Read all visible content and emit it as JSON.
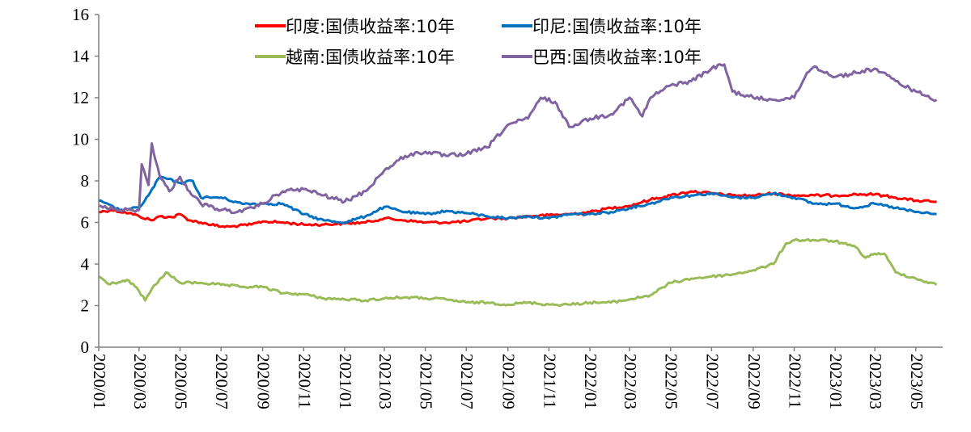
{
  "chart_data": {
    "type": "line",
    "title": "",
    "xlabel": "",
    "ylabel": "",
    "ylim": [
      0,
      16
    ],
    "yticks": [
      0,
      2,
      4,
      6,
      8,
      10,
      12,
      14,
      16
    ],
    "xlim": [
      "2020-01-01",
      "2023-06-10"
    ],
    "x_tick_labels": [
      "2020/01",
      "2020/03",
      "2020/05",
      "2020/07",
      "2020/09",
      "2020/11",
      "2021/01",
      "2021/03",
      "2021/05",
      "2021/07",
      "2021/09",
      "2021/11",
      "2022/01",
      "2022/03",
      "2022/05",
      "2022/07",
      "2022/09",
      "2022/11",
      "2023/01",
      "2023/03",
      "2023/05"
    ],
    "grid": false,
    "legend_position": "top-center",
    "series": [
      {
        "name": "印度:国债收益率:10年",
        "color": "#ff0000",
        "points": [
          [
            "2020-01-01",
            6.5
          ],
          [
            "2020-01-20",
            6.6
          ],
          [
            "2020-02-15",
            6.45
          ],
          [
            "2020-03-01",
            6.3
          ],
          [
            "2020-03-20",
            6.1
          ],
          [
            "2020-04-01",
            6.3
          ],
          [
            "2020-04-20",
            6.25
          ],
          [
            "2020-05-01",
            6.4
          ],
          [
            "2020-05-15",
            6.1
          ],
          [
            "2020-06-01",
            6.0
          ],
          [
            "2020-07-01",
            5.8
          ],
          [
            "2020-07-15",
            5.8
          ],
          [
            "2020-08-15",
            5.9
          ],
          [
            "2020-09-01",
            6.05
          ],
          [
            "2020-10-01",
            6.0
          ],
          [
            "2020-11-01",
            5.9
          ],
          [
            "2020-12-01",
            5.9
          ],
          [
            "2021-01-01",
            5.95
          ],
          [
            "2021-02-01",
            6.0
          ],
          [
            "2021-03-01",
            6.2
          ],
          [
            "2021-04-01",
            6.1
          ],
          [
            "2021-05-01",
            6.0
          ],
          [
            "2021-06-01",
            6.0
          ],
          [
            "2021-07-01",
            6.05
          ],
          [
            "2021-08-01",
            6.2
          ],
          [
            "2021-09-01",
            6.2
          ],
          [
            "2021-10-01",
            6.3
          ],
          [
            "2021-11-01",
            6.35
          ],
          [
            "2021-12-01",
            6.4
          ],
          [
            "2022-01-01",
            6.5
          ],
          [
            "2022-02-01",
            6.7
          ],
          [
            "2022-03-01",
            6.8
          ],
          [
            "2022-04-01",
            7.1
          ],
          [
            "2022-05-01",
            7.3
          ],
          [
            "2022-06-01",
            7.5
          ],
          [
            "2022-07-01",
            7.4
          ],
          [
            "2022-08-01",
            7.3
          ],
          [
            "2022-09-01",
            7.3
          ],
          [
            "2022-10-01",
            7.4
          ],
          [
            "2022-11-01",
            7.3
          ],
          [
            "2022-12-01",
            7.3
          ],
          [
            "2023-01-01",
            7.3
          ],
          [
            "2023-02-01",
            7.35
          ],
          [
            "2023-03-01",
            7.35
          ],
          [
            "2023-04-01",
            7.2
          ],
          [
            "2023-05-01",
            7.05
          ],
          [
            "2023-06-01",
            7.0
          ]
        ]
      },
      {
        "name": "印尼:国债收益率:10年",
        "color": "#0070c0",
        "points": [
          [
            "2020-01-01",
            7.05
          ],
          [
            "2020-02-01",
            6.6
          ],
          [
            "2020-03-01",
            6.7
          ],
          [
            "2020-03-15",
            7.3
          ],
          [
            "2020-04-01",
            8.2
          ],
          [
            "2020-05-01",
            7.9
          ],
          [
            "2020-05-20",
            8.0
          ],
          [
            "2020-06-01",
            7.2
          ],
          [
            "2020-07-01",
            7.2
          ],
          [
            "2020-08-01",
            6.9
          ],
          [
            "2020-09-01",
            6.9
          ],
          [
            "2020-10-01",
            6.9
          ],
          [
            "2020-11-01",
            6.4
          ],
          [
            "2020-12-01",
            6.1
          ],
          [
            "2021-01-01",
            6.0
          ],
          [
            "2021-02-01",
            6.3
          ],
          [
            "2021-03-01",
            6.75
          ],
          [
            "2021-04-01",
            6.5
          ],
          [
            "2021-05-01",
            6.4
          ],
          [
            "2021-06-01",
            6.55
          ],
          [
            "2021-07-01",
            6.45
          ],
          [
            "2021-08-01",
            6.3
          ],
          [
            "2021-09-01",
            6.2
          ],
          [
            "2021-10-01",
            6.3
          ],
          [
            "2021-11-01",
            6.2
          ],
          [
            "2021-12-01",
            6.4
          ],
          [
            "2022-01-01",
            6.4
          ],
          [
            "2022-02-01",
            6.5
          ],
          [
            "2022-03-01",
            6.7
          ],
          [
            "2022-04-01",
            6.9
          ],
          [
            "2022-05-01",
            7.2
          ],
          [
            "2022-06-01",
            7.3
          ],
          [
            "2022-07-01",
            7.4
          ],
          [
            "2022-08-01",
            7.2
          ],
          [
            "2022-09-01",
            7.2
          ],
          [
            "2022-10-01",
            7.4
          ],
          [
            "2022-11-01",
            7.2
          ],
          [
            "2022-12-01",
            6.9
          ],
          [
            "2023-01-01",
            6.9
          ],
          [
            "2023-02-01",
            6.7
          ],
          [
            "2023-03-01",
            6.9
          ],
          [
            "2023-04-01",
            6.7
          ],
          [
            "2023-05-01",
            6.5
          ],
          [
            "2023-06-01",
            6.4
          ]
        ]
      },
      {
        "name": "越南:国债收益率:10年",
        "color": "#9bbb59",
        "points": [
          [
            "2020-01-01",
            3.4
          ],
          [
            "2020-01-15",
            3.05
          ],
          [
            "2020-02-15",
            3.2
          ],
          [
            "2020-03-01",
            2.7
          ],
          [
            "2020-03-10",
            2.25
          ],
          [
            "2020-03-20",
            2.8
          ],
          [
            "2020-04-10",
            3.6
          ],
          [
            "2020-05-01",
            3.1
          ],
          [
            "2020-06-01",
            3.1
          ],
          [
            "2020-07-01",
            3.0
          ],
          [
            "2020-08-01",
            2.9
          ],
          [
            "2020-09-01",
            2.9
          ],
          [
            "2020-10-01",
            2.6
          ],
          [
            "2020-11-01",
            2.55
          ],
          [
            "2020-12-01",
            2.35
          ],
          [
            "2021-01-01",
            2.3
          ],
          [
            "2021-02-01",
            2.25
          ],
          [
            "2021-03-01",
            2.35
          ],
          [
            "2021-04-01",
            2.4
          ],
          [
            "2021-05-01",
            2.35
          ],
          [
            "2021-06-01",
            2.3
          ],
          [
            "2021-07-01",
            2.15
          ],
          [
            "2021-08-01",
            2.15
          ],
          [
            "2021-09-01",
            2.05
          ],
          [
            "2021-10-01",
            2.15
          ],
          [
            "2021-11-01",
            2.05
          ],
          [
            "2021-12-01",
            2.05
          ],
          [
            "2022-01-01",
            2.15
          ],
          [
            "2022-02-01",
            2.15
          ],
          [
            "2022-03-01",
            2.3
          ],
          [
            "2022-04-01",
            2.5
          ],
          [
            "2022-05-01",
            3.1
          ],
          [
            "2022-06-01",
            3.3
          ],
          [
            "2022-07-01",
            3.4
          ],
          [
            "2022-08-01",
            3.5
          ],
          [
            "2022-09-01",
            3.7
          ],
          [
            "2022-10-01",
            4.0
          ],
          [
            "2022-10-20",
            5.0
          ],
          [
            "2022-11-01",
            5.15
          ],
          [
            "2022-12-01",
            5.15
          ],
          [
            "2023-01-01",
            5.1
          ],
          [
            "2023-02-01",
            4.8
          ],
          [
            "2023-02-15",
            4.3
          ],
          [
            "2023-03-01",
            4.5
          ],
          [
            "2023-03-15",
            4.5
          ],
          [
            "2023-04-01",
            3.6
          ],
          [
            "2023-05-01",
            3.3
          ],
          [
            "2023-06-01",
            3.0
          ]
        ]
      },
      {
        "name": "巴西:国债收益率:10年",
        "color": "#8064a2",
        "points": [
          [
            "2020-01-01",
            6.8
          ],
          [
            "2020-02-01",
            6.6
          ],
          [
            "2020-03-01",
            6.6
          ],
          [
            "2020-03-05",
            8.8
          ],
          [
            "2020-03-15",
            7.8
          ],
          [
            "2020-03-20",
            9.8
          ],
          [
            "2020-04-01",
            8.2
          ],
          [
            "2020-04-15",
            7.5
          ],
          [
            "2020-05-01",
            8.2
          ],
          [
            "2020-05-15",
            7.5
          ],
          [
            "2020-06-01",
            6.9
          ],
          [
            "2020-07-01",
            6.6
          ],
          [
            "2020-08-01",
            6.5
          ],
          [
            "2020-09-01",
            6.9
          ],
          [
            "2020-10-01",
            7.5
          ],
          [
            "2020-11-01",
            7.6
          ],
          [
            "2020-12-01",
            7.3
          ],
          [
            "2021-01-01",
            7.0
          ],
          [
            "2021-02-01",
            7.5
          ],
          [
            "2021-03-01",
            8.5
          ],
          [
            "2021-04-01",
            9.2
          ],
          [
            "2021-05-01",
            9.4
          ],
          [
            "2021-06-01",
            9.2
          ],
          [
            "2021-07-01",
            9.3
          ],
          [
            "2021-08-01",
            9.6
          ],
          [
            "2021-09-01",
            10.7
          ],
          [
            "2021-10-01",
            11.0
          ],
          [
            "2021-10-20",
            12.0
          ],
          [
            "2021-11-10",
            11.8
          ],
          [
            "2021-12-01",
            10.6
          ],
          [
            "2022-01-01",
            11.0
          ],
          [
            "2022-02-01",
            11.2
          ],
          [
            "2022-03-01",
            12.0
          ],
          [
            "2022-03-20",
            11.1
          ],
          [
            "2022-04-01",
            12.0
          ],
          [
            "2022-05-01",
            12.6
          ],
          [
            "2022-06-01",
            12.8
          ],
          [
            "2022-07-01",
            13.4
          ],
          [
            "2022-07-20",
            13.6
          ],
          [
            "2022-08-01",
            12.3
          ],
          [
            "2022-09-01",
            12.0
          ],
          [
            "2022-10-01",
            11.9
          ],
          [
            "2022-11-01",
            12.0
          ],
          [
            "2022-11-20",
            13.2
          ],
          [
            "2022-12-01",
            13.5
          ],
          [
            "2023-01-01",
            13.0
          ],
          [
            "2023-02-01",
            13.2
          ],
          [
            "2023-03-01",
            13.4
          ],
          [
            "2023-04-01",
            12.8
          ],
          [
            "2023-05-01",
            12.3
          ],
          [
            "2023-06-01",
            11.9
          ]
        ]
      }
    ]
  }
}
